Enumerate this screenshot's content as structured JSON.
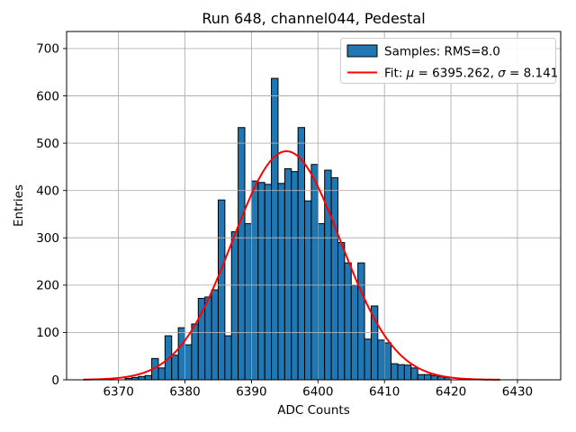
{
  "figure": {
    "title": "Run 648, channel044, Pedestal"
  },
  "chart_data": {
    "type": "bar",
    "subtype": "histogram-with-gaussian-fit",
    "title": "Run 648, channel044, Pedestal",
    "xlabel": "ADC Counts",
    "ylabel": "Entries",
    "xlim": [
      6362.2,
      6436.5
    ],
    "ylim": [
      0,
      736
    ],
    "xticks": [
      6370,
      6380,
      6390,
      6400,
      6410,
      6420,
      6430
    ],
    "yticks": [
      0,
      100,
      200,
      300,
      400,
      500,
      600,
      700
    ],
    "grid": true,
    "bin_width": 1,
    "bin_start": 6371,
    "counts": [
      3,
      5,
      7,
      9,
      45,
      25,
      93,
      52,
      110,
      74,
      118,
      172,
      175,
      190,
      380,
      93,
      313,
      533,
      330,
      420,
      417,
      413,
      637,
      415,
      446,
      440,
      533,
      378,
      455,
      330,
      443,
      427,
      290,
      247,
      200,
      247,
      86,
      156,
      84,
      78,
      34,
      32,
      31,
      25,
      11,
      11,
      9,
      7,
      5
    ],
    "fit": {
      "mu": 6395.262,
      "sigma": 8.141,
      "amplitude": 483,
      "x_start": 6364.8,
      "x_end": 6427.5
    },
    "legend": {
      "position": "upper right",
      "samples_label": "Samples: RMS=8.0",
      "fit_label": "Fit: μ = 6395.262, σ = 8.141",
      "fit_label_parts": {
        "prefix": "Fit: ",
        "mu": "μ",
        "mid": " = 6395.262, ",
        "sigma": "σ",
        "suffix": " = 8.141"
      }
    },
    "colors": {
      "bar_fill": "#1f77b4",
      "bar_edge": "#000000",
      "fit_line": "#ff0000",
      "grid": "#b0b0b0",
      "legend_border": "#cccccc",
      "text": "#000000",
      "background": "#ffffff"
    }
  }
}
